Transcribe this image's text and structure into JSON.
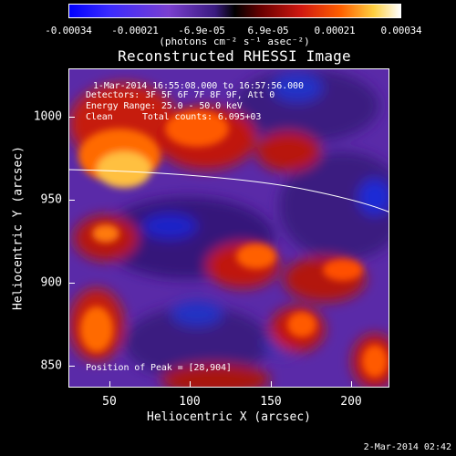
{
  "colorbar": {
    "ticks": [
      "-0.00034",
      "-0.00021",
      "-6.9e-05",
      "6.9e-05",
      "0.00021",
      "0.00034"
    ],
    "units": "(photons cm⁻² s⁻¹ asec⁻²)"
  },
  "title": "Reconstructed RHESSI Image",
  "info": {
    "time_range": "1-Mar-2014 16:55:08.000 to 16:57:56.000",
    "detectors": "Detectors: 3F 5F 6F 7F 8F 9F, Att 0",
    "energy_range": "Energy Range: 25.0 - 50.0 keV",
    "method": "Clean",
    "total_counts": "Total counts: 6.095+03",
    "peak": "Position of Peak = [28,904]"
  },
  "axes": {
    "xlabel": "Heliocentric X (arcsec)",
    "ylabel": "Heliocentric Y (arcsec)",
    "x_ticks": [
      "50",
      "100",
      "150",
      "200"
    ],
    "y_ticks": [
      "1000",
      "950",
      "900",
      "850"
    ]
  },
  "timestamp": "2-Mar-2014 02:42"
}
